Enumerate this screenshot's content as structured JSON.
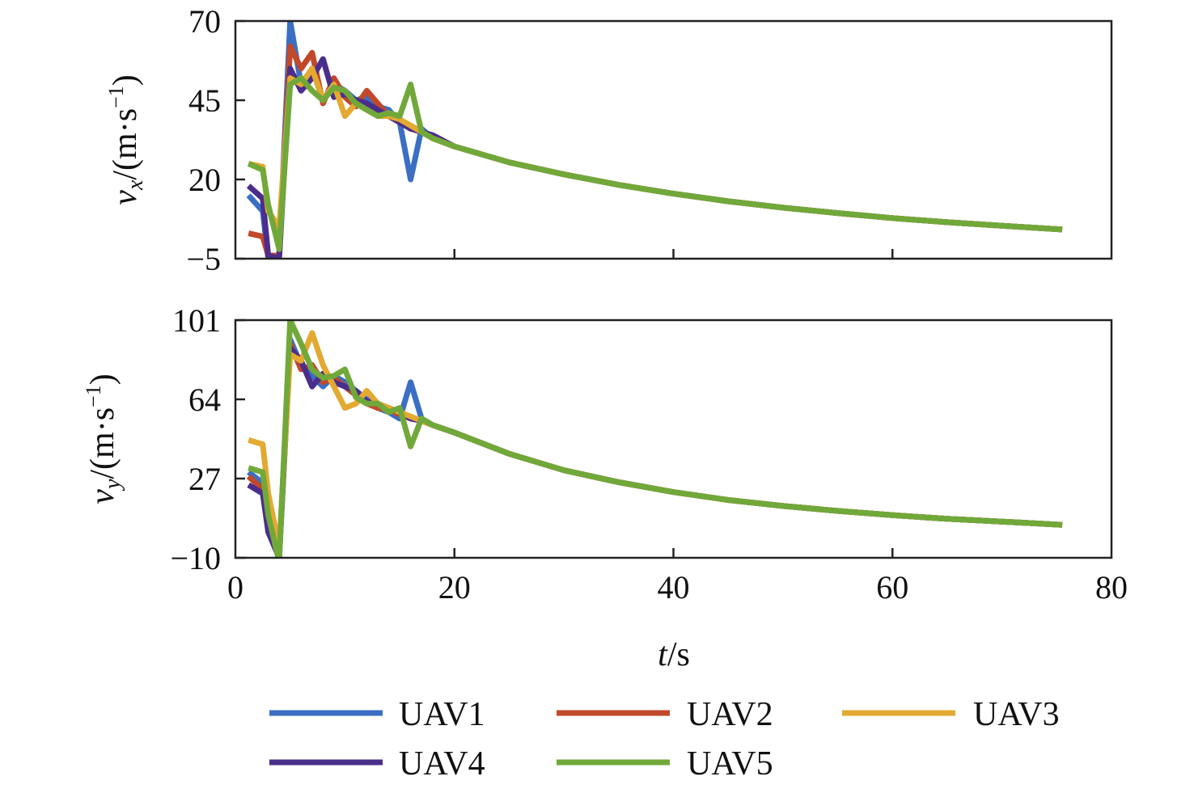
{
  "chart_data": [
    {
      "type": "line",
      "ylabel_var": "v",
      "ylabel_sub": "x",
      "ylabel_unit": "/(m·s",
      "ylabel_sup": "−1",
      "ylabel_close": ")",
      "xlim": [
        0,
        80
      ],
      "ylim": [
        -5,
        70
      ],
      "yticks": [
        "70",
        "45",
        "20",
        "−5"
      ],
      "ytick_values": [
        70,
        45,
        20,
        -5
      ],
      "xticks": [
        20,
        40,
        60
      ],
      "series": [
        {
          "name": "UAV1",
          "x": [
            1.2,
            2.5,
            3.0,
            4.0,
            5.0,
            6.0,
            7.0,
            8.0,
            9.0,
            10.0,
            11.0,
            12.0,
            13.0,
            14.0,
            15.0,
            16.0,
            17.0,
            18.0,
            20,
            25,
            30,
            35,
            40,
            45,
            50,
            55,
            60,
            65,
            70,
            75.5
          ],
          "y": [
            15,
            10,
            -5,
            -4,
            70,
            50,
            55,
            45,
            50,
            48,
            45,
            46,
            43,
            42,
            38,
            20,
            36,
            33,
            30.4,
            25.4,
            21.6,
            18.3,
            15.5,
            13.1,
            11.1,
            9.4,
            7.8,
            6.5,
            5.4,
            4.2
          ]
        },
        {
          "name": "UAV2",
          "x": [
            1.2,
            2.5,
            3.0,
            4.0,
            5.0,
            6.0,
            7.0,
            8.0,
            9.0,
            10.0,
            11.0,
            12.0,
            13.0,
            14.0,
            15.0,
            16.0,
            17.0,
            18.0,
            20,
            25,
            30,
            35,
            40,
            45,
            50,
            55,
            60,
            65,
            70,
            75.5
          ],
          "y": [
            3,
            2,
            -4,
            -4,
            62,
            55,
            60,
            44,
            52,
            46,
            43,
            48,
            44,
            40,
            38,
            37,
            35,
            33,
            30.4,
            25.4,
            21.6,
            18.3,
            15.5,
            13.1,
            11.1,
            9.4,
            7.8,
            6.5,
            5.4,
            4.2
          ]
        },
        {
          "name": "UAV3",
          "x": [
            1.2,
            2.5,
            3.0,
            4.0,
            5.0,
            6.0,
            7.0,
            8.0,
            9.0,
            10.0,
            11.0,
            12.0,
            13.0,
            14.0,
            15.0,
            16.0,
            17.0,
            18.0,
            20,
            25,
            30,
            35,
            40,
            45,
            50,
            55,
            60,
            65,
            70,
            75.5
          ],
          "y": [
            25,
            24,
            10,
            5,
            52,
            50,
            55,
            45,
            50,
            40,
            44,
            42,
            40,
            40,
            39,
            37,
            35,
            33,
            30.4,
            25.4,
            21.6,
            18.3,
            15.5,
            13.1,
            11.1,
            9.4,
            7.8,
            6.5,
            5.4,
            4.2
          ]
        },
        {
          "name": "UAV4",
          "x": [
            1.2,
            2.5,
            3.0,
            4.0,
            5.0,
            6.0,
            7.0,
            8.0,
            9.0,
            10.0,
            11.0,
            12.0,
            13.0,
            14.0,
            15.0,
            16.0,
            17.0,
            18.0,
            20,
            25,
            30,
            35,
            40,
            45,
            50,
            55,
            60,
            65,
            70,
            75.5
          ],
          "y": [
            18,
            14,
            -4,
            -5,
            55,
            48,
            52,
            58,
            46,
            47,
            45,
            44,
            42,
            40,
            38,
            36,
            35,
            34,
            30.4,
            25.4,
            21.6,
            18.3,
            15.5,
            13.1,
            11.1,
            9.4,
            7.8,
            6.5,
            5.4,
            4.2
          ]
        },
        {
          "name": "UAV5",
          "x": [
            1.2,
            2.5,
            3.0,
            4.0,
            5.0,
            6.0,
            7.0,
            8.0,
            9.0,
            10.0,
            11.0,
            12.0,
            13.0,
            14.0,
            15.0,
            16.0,
            17.0,
            18.0,
            20,
            25,
            30,
            35,
            40,
            45,
            50,
            55,
            60,
            65,
            70,
            75.5
          ],
          "y": [
            25,
            23,
            12,
            -2,
            50,
            52,
            48,
            45,
            49,
            48,
            44,
            42,
            40,
            41,
            40,
            50,
            35,
            33,
            30.4,
            25.4,
            21.6,
            18.3,
            15.5,
            13.1,
            11.1,
            9.4,
            7.8,
            6.5,
            5.4,
            4.2
          ]
        }
      ]
    },
    {
      "type": "line",
      "ylabel_var": "v",
      "ylabel_sub": "y",
      "ylabel_unit": "/(m·s",
      "ylabel_sup": "−1",
      "ylabel_close": ")",
      "xlim": [
        0,
        80
      ],
      "ylim": [
        -10,
        101
      ],
      "yticks": [
        "101",
        "64",
        "27",
        "−10"
      ],
      "ytick_values": [
        101,
        64,
        27,
        -10
      ],
      "xticks": [
        0,
        20,
        40,
        60,
        80
      ],
      "xtick_labels": [
        "0",
        "20",
        "40",
        "60",
        "80"
      ],
      "xlabel_var": "t",
      "xlabel_unit": "/s",
      "series": [
        {
          "name": "UAV1",
          "x": [
            1.2,
            2.5,
            3.0,
            4.0,
            5.0,
            6.0,
            7.0,
            8.0,
            9.0,
            10.0,
            11.0,
            12.0,
            13.0,
            14.0,
            15.0,
            16.0,
            17.0,
            18.0,
            20,
            25,
            30,
            35,
            40,
            45,
            50,
            55,
            60,
            65,
            70,
            75.5
          ],
          "y": [
            30,
            25,
            5,
            -8,
            92,
            80,
            75,
            70,
            75,
            72,
            68,
            64,
            60,
            58,
            55,
            72,
            55,
            52,
            48.5,
            38.6,
            30.9,
            25.3,
            20.7,
            17.0,
            14.2,
            11.9,
            9.9,
            8.2,
            6.9,
            5.4
          ]
        },
        {
          "name": "UAV2",
          "x": [
            1.2,
            2.5,
            3.0,
            4.0,
            5.0,
            6.0,
            7.0,
            8.0,
            9.0,
            10.0,
            11.0,
            12.0,
            13.0,
            14.0,
            15.0,
            16.0,
            17.0,
            18.0,
            20,
            25,
            30,
            35,
            40,
            45,
            50,
            55,
            60,
            65,
            70,
            75.5
          ],
          "y": [
            28,
            22,
            3,
            -9,
            90,
            78,
            80,
            72,
            74,
            70,
            66,
            62,
            60,
            59,
            57,
            55,
            54,
            52,
            48.5,
            38.6,
            30.9,
            25.3,
            20.7,
            17.0,
            14.2,
            11.9,
            9.9,
            8.2,
            6.9,
            5.4
          ]
        },
        {
          "name": "UAV3",
          "x": [
            1.2,
            2.5,
            3.0,
            4.0,
            5.0,
            6.0,
            7.0,
            8.0,
            9.0,
            10.0,
            11.0,
            12.0,
            13.0,
            14.0,
            15.0,
            16.0,
            17.0,
            18.0,
            20,
            25,
            30,
            35,
            40,
            45,
            50,
            55,
            60,
            65,
            70,
            75.5
          ],
          "y": [
            45,
            43,
            20,
            -5,
            85,
            82,
            95,
            80,
            70,
            60,
            62,
            68,
            62,
            60,
            58,
            56,
            54,
            52,
            48.5,
            38.6,
            30.9,
            25.3,
            20.7,
            17.0,
            14.2,
            11.9,
            9.9,
            8.2,
            6.9,
            5.4
          ]
        },
        {
          "name": "UAV4",
          "x": [
            1.2,
            2.5,
            3.0,
            4.0,
            5.0,
            6.0,
            7.0,
            8.0,
            9.0,
            10.0,
            11.0,
            12.0,
            13.0,
            14.0,
            15.0,
            16.0,
            17.0,
            18.0,
            20,
            25,
            30,
            35,
            40,
            45,
            50,
            55,
            60,
            65,
            70,
            75.5
          ],
          "y": [
            24,
            20,
            2,
            -10,
            88,
            82,
            70,
            76,
            72,
            70,
            68,
            63,
            62,
            60,
            58,
            55,
            54,
            52,
            48.5,
            38.6,
            30.9,
            25.3,
            20.7,
            17.0,
            14.2,
            11.9,
            9.9,
            8.2,
            6.9,
            5.4
          ]
        },
        {
          "name": "UAV5",
          "x": [
            1.2,
            2.5,
            3.0,
            4.0,
            5.0,
            6.0,
            7.0,
            8.0,
            9.0,
            10.0,
            11.0,
            12.0,
            13.0,
            14.0,
            15.0,
            16.0,
            17.0,
            18.0,
            20,
            25,
            30,
            35,
            40,
            45,
            50,
            55,
            60,
            65,
            70,
            75.5
          ],
          "y": [
            32,
            30,
            10,
            -12,
            101,
            90,
            78,
            74,
            75,
            78,
            65,
            62,
            62,
            58,
            60,
            42,
            55,
            52,
            48.5,
            38.6,
            30.9,
            25.3,
            20.7,
            17.0,
            14.2,
            11.9,
            9.9,
            8.2,
            6.9,
            5.4
          ]
        }
      ]
    }
  ],
  "legend": {
    "placement": "bottom",
    "entries": [
      {
        "label": "UAV1",
        "color": "#3a6fc4"
      },
      {
        "label": "UAV2",
        "color": "#c2482a"
      },
      {
        "label": "UAV3",
        "color": "#e3a931"
      },
      {
        "label": "UAV4",
        "color": "#4b2d8c"
      },
      {
        "label": "UAV5",
        "color": "#71a83a"
      }
    ]
  },
  "colors": {
    "UAV1": "#3a6fc4",
    "UAV2": "#c2482a",
    "UAV3": "#e3a931",
    "UAV4": "#4b2d8c",
    "UAV5": "#71a83a"
  }
}
